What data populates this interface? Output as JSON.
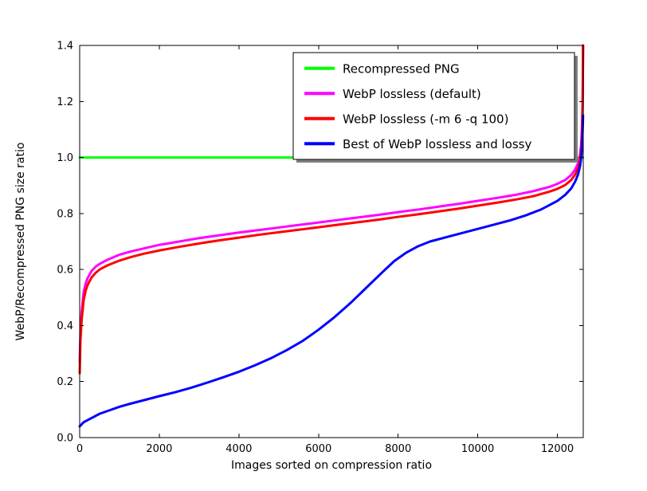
{
  "chart_data": {
    "type": "line",
    "title": "",
    "xlabel": "Images sorted on compression ratio",
    "ylabel": "WebP/Recompressed PNG size ratio",
    "xlim": [
      0,
      12650
    ],
    "ylim": [
      0.0,
      1.4
    ],
    "xticks": [
      0,
      2000,
      4000,
      6000,
      8000,
      10000,
      12000
    ],
    "xtick_labels": [
      "0",
      "2000",
      "4000",
      "6000",
      "8000",
      "10000",
      "12000"
    ],
    "yticks": [
      0.0,
      0.2,
      0.4,
      0.6,
      0.8,
      1.0,
      1.2,
      1.4
    ],
    "ytick_labels": [
      "0.0",
      "0.2",
      "0.4",
      "0.6",
      "0.8",
      "1.0",
      "1.2",
      "1.4"
    ],
    "grid": false,
    "legend_position": "upper right",
    "legend_shadow": true,
    "axis_color": "#000000",
    "background_color": "#ffffff",
    "series": [
      {
        "name": "Recompressed PNG",
        "color": "#00ff00",
        "points": [
          [
            0,
            1.0
          ],
          [
            12645,
            1.0
          ]
        ]
      },
      {
        "name": "WebP lossless (default)",
        "color": "#ff00ff",
        "points": [
          [
            0,
            0.27
          ],
          [
            20,
            0.38
          ],
          [
            50,
            0.45
          ],
          [
            100,
            0.52
          ],
          [
            150,
            0.55
          ],
          [
            200,
            0.57
          ],
          [
            300,
            0.595
          ],
          [
            400,
            0.61
          ],
          [
            500,
            0.62
          ],
          [
            700,
            0.635
          ],
          [
            1000,
            0.653
          ],
          [
            1300,
            0.665
          ],
          [
            1600,
            0.675
          ],
          [
            2000,
            0.688
          ],
          [
            2500,
            0.7
          ],
          [
            3000,
            0.712
          ],
          [
            3500,
            0.722
          ],
          [
            4000,
            0.732
          ],
          [
            4500,
            0.741
          ],
          [
            5000,
            0.75
          ],
          [
            5500,
            0.759
          ],
          [
            6000,
            0.768
          ],
          [
            6500,
            0.777
          ],
          [
            7000,
            0.786
          ],
          [
            7500,
            0.795
          ],
          [
            8000,
            0.805
          ],
          [
            8500,
            0.814
          ],
          [
            9000,
            0.824
          ],
          [
            9500,
            0.834
          ],
          [
            10000,
            0.845
          ],
          [
            10500,
            0.856
          ],
          [
            11000,
            0.868
          ],
          [
            11400,
            0.88
          ],
          [
            11800,
            0.895
          ],
          [
            12000,
            0.906
          ],
          [
            12200,
            0.92
          ],
          [
            12350,
            0.938
          ],
          [
            12450,
            0.958
          ],
          [
            12520,
            0.98
          ],
          [
            12570,
            1.01
          ],
          [
            12600,
            1.05
          ],
          [
            12620,
            1.12
          ],
          [
            12635,
            1.22
          ],
          [
            12645,
            1.4
          ]
        ]
      },
      {
        "name": "WebP lossless (-m 6 -q 100)",
        "color": "#ff0000",
        "points": [
          [
            0,
            0.23
          ],
          [
            20,
            0.35
          ],
          [
            50,
            0.42
          ],
          [
            100,
            0.49
          ],
          [
            150,
            0.525
          ],
          [
            200,
            0.545
          ],
          [
            300,
            0.572
          ],
          [
            400,
            0.588
          ],
          [
            500,
            0.6
          ],
          [
            700,
            0.615
          ],
          [
            1000,
            0.632
          ],
          [
            1300,
            0.645
          ],
          [
            1600,
            0.656
          ],
          [
            2000,
            0.668
          ],
          [
            2500,
            0.681
          ],
          [
            3000,
            0.693
          ],
          [
            3500,
            0.704
          ],
          [
            4000,
            0.714
          ],
          [
            4500,
            0.724
          ],
          [
            5000,
            0.733
          ],
          [
            5500,
            0.742
          ],
          [
            6000,
            0.751
          ],
          [
            6500,
            0.76
          ],
          [
            7000,
            0.769
          ],
          [
            7500,
            0.778
          ],
          [
            8000,
            0.788
          ],
          [
            8500,
            0.797
          ],
          [
            9000,
            0.807
          ],
          [
            9500,
            0.817
          ],
          [
            10000,
            0.828
          ],
          [
            10500,
            0.839
          ],
          [
            11000,
            0.851
          ],
          [
            11400,
            0.862
          ],
          [
            11800,
            0.878
          ],
          [
            12000,
            0.888
          ],
          [
            12200,
            0.902
          ],
          [
            12350,
            0.92
          ],
          [
            12450,
            0.94
          ],
          [
            12520,
            0.962
          ],
          [
            12570,
            0.99
          ],
          [
            12600,
            1.03
          ],
          [
            12620,
            1.09
          ],
          [
            12635,
            1.18
          ],
          [
            12645,
            1.4
          ]
        ]
      },
      {
        "name": "Best of WebP lossless and lossy",
        "color": "#0000ff",
        "points": [
          [
            0,
            0.04
          ],
          [
            100,
            0.055
          ],
          [
            300,
            0.07
          ],
          [
            500,
            0.085
          ],
          [
            800,
            0.1
          ],
          [
            1000,
            0.11
          ],
          [
            1300,
            0.122
          ],
          [
            1600,
            0.133
          ],
          [
            2000,
            0.148
          ],
          [
            2400,
            0.162
          ],
          [
            2800,
            0.178
          ],
          [
            3200,
            0.196
          ],
          [
            3600,
            0.215
          ],
          [
            4000,
            0.235
          ],
          [
            4400,
            0.258
          ],
          [
            4800,
            0.283
          ],
          [
            5200,
            0.312
          ],
          [
            5600,
            0.345
          ],
          [
            6000,
            0.385
          ],
          [
            6400,
            0.43
          ],
          [
            6800,
            0.48
          ],
          [
            7200,
            0.535
          ],
          [
            7600,
            0.59
          ],
          [
            7900,
            0.63
          ],
          [
            8200,
            0.66
          ],
          [
            8500,
            0.683
          ],
          [
            8800,
            0.7
          ],
          [
            9200,
            0.715
          ],
          [
            9600,
            0.73
          ],
          [
            10000,
            0.745
          ],
          [
            10400,
            0.76
          ],
          [
            10800,
            0.775
          ],
          [
            11200,
            0.793
          ],
          [
            11600,
            0.815
          ],
          [
            12000,
            0.845
          ],
          [
            12200,
            0.867
          ],
          [
            12350,
            0.89
          ],
          [
            12450,
            0.915
          ],
          [
            12520,
            0.94
          ],
          [
            12570,
            0.97
          ],
          [
            12600,
            1.0
          ],
          [
            12620,
            1.05
          ],
          [
            12635,
            1.1
          ],
          [
            12645,
            1.15
          ]
        ]
      }
    ]
  }
}
